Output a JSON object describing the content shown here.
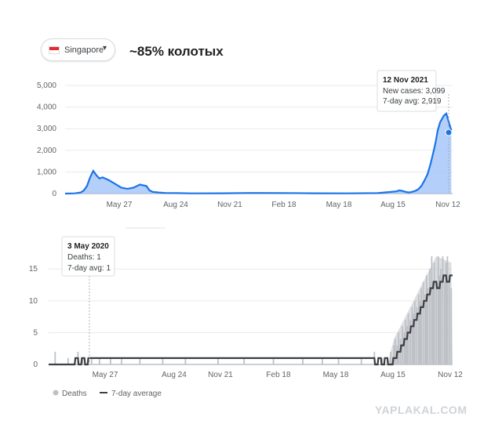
{
  "header": {
    "country": "Singapore",
    "annotation": "~85% колотых"
  },
  "watermark": "YAPLAKAL.COM",
  "colors": {
    "cases_line": "#1a73e8",
    "cases_fill": "#a8c7fa",
    "deaths_bar": "#bdc1c6",
    "deaths_avg": "#3c4043",
    "gridline": "#e8eaed",
    "flag_red": "#e8262d"
  },
  "chart_data": [
    {
      "type": "area",
      "name": "new-cases",
      "x_ticks": [
        "May 27",
        "Aug 24",
        "Nov 21",
        "Feb 18",
        "May 18",
        "Aug 15",
        "Nov 12"
      ],
      "y_ticks": [
        "0",
        "1,000",
        "2,000",
        "3,000",
        "4,000",
        "5,000"
      ],
      "ylim": [
        0,
        5000
      ],
      "x_unit": "days since first point on the axis (approx.)",
      "x": [
        0,
        15,
        25,
        30,
        35,
        40,
        45,
        50,
        55,
        60,
        70,
        80,
        90,
        100,
        110,
        115,
        120,
        125,
        130,
        135,
        140,
        150,
        160,
        180,
        200,
        250,
        300,
        350,
        400,
        450,
        500,
        530,
        535,
        540,
        545,
        550,
        555,
        560,
        565,
        570,
        575,
        580,
        585,
        590,
        593,
        596,
        600,
        603,
        606,
        610,
        614,
        618
      ],
      "y": [
        0,
        10,
        50,
        150,
        350,
        750,
        1050,
        850,
        700,
        750,
        620,
        450,
        270,
        220,
        280,
        350,
        420,
        380,
        350,
        150,
        80,
        50,
        30,
        20,
        10,
        15,
        30,
        25,
        15,
        10,
        20,
        100,
        150,
        120,
        80,
        50,
        80,
        120,
        200,
        350,
        600,
        900,
        1400,
        2000,
        2400,
        2900,
        3300,
        3450,
        3600,
        3700,
        3300,
        2919
      ],
      "tooltip": {
        "date": "12 Nov 2021",
        "line1": "New cases: 3,099",
        "line2": "7-day avg: 2,919"
      }
    },
    {
      "type": "bar",
      "name": "deaths",
      "x_ticks": [
        "May 27",
        "Aug 24",
        "Nov 21",
        "Feb 18",
        "May 18",
        "Aug 15",
        "Nov 12"
      ],
      "y_ticks": [
        "0",
        "5",
        "10",
        "15"
      ],
      "ylim": [
        0,
        17
      ],
      "avg_x": [
        0,
        40,
        41,
        45,
        46,
        50,
        51,
        55,
        56,
        60,
        61,
        500,
        501,
        505,
        506,
        510,
        511,
        515,
        516,
        520,
        521,
        528,
        529,
        534,
        535,
        540,
        541,
        545,
        546,
        550,
        551,
        555,
        556,
        560,
        561,
        565,
        566,
        570,
        571,
        575,
        576,
        580,
        581,
        585,
        586,
        590,
        591,
        595,
        596,
        600,
        601,
        605,
        606,
        610,
        611,
        615,
        616,
        620
      ],
      "avg_y": [
        0,
        0,
        1,
        1,
        0,
        0,
        1,
        1,
        0,
        0,
        1,
        1,
        0,
        0,
        1,
        1,
        0,
        0,
        1,
        1,
        0,
        0,
        1,
        1,
        2,
        2,
        3,
        3,
        4,
        4,
        5,
        5,
        6,
        6,
        7,
        7,
        8,
        8,
        9,
        9,
        10,
        10,
        11,
        11,
        12,
        12,
        13,
        13,
        12,
        12,
        13,
        13,
        14,
        14,
        13,
        13,
        14,
        14
      ],
      "bars_x": [
        10,
        30,
        45,
        52,
        60,
        66,
        78,
        95,
        112,
        140,
        175,
        210,
        260,
        300,
        345,
        390,
        420,
        445,
        480,
        500,
        512,
        520,
        525,
        530,
        532,
        535,
        537,
        540,
        543,
        546,
        548,
        550,
        552,
        555,
        558,
        560,
        562,
        565,
        568,
        570,
        572,
        575,
        578,
        580,
        582,
        585,
        588,
        590,
        592,
        595,
        598,
        600,
        602,
        605,
        608,
        610,
        612,
        615,
        618
      ],
      "bars_y": [
        2,
        1,
        2,
        1,
        1,
        1,
        1,
        1,
        1,
        1,
        1,
        1,
        1,
        1,
        1,
        1,
        1,
        1,
        1,
        2,
        1,
        1,
        2,
        3,
        4,
        3,
        5,
        4,
        6,
        5,
        7,
        6,
        8,
        7,
        9,
        8,
        10,
        9,
        11,
        10,
        12,
        13,
        11,
        14,
        12,
        15,
        17,
        13,
        16,
        12,
        17,
        14,
        15,
        17,
        13,
        16,
        17,
        14,
        12
      ],
      "tooltip": {
        "date": "3 May 2020",
        "line1": "Deaths: 1",
        "line2": "7-day avg: 1"
      },
      "legend": [
        "Deaths",
        "7-day average"
      ]
    }
  ]
}
